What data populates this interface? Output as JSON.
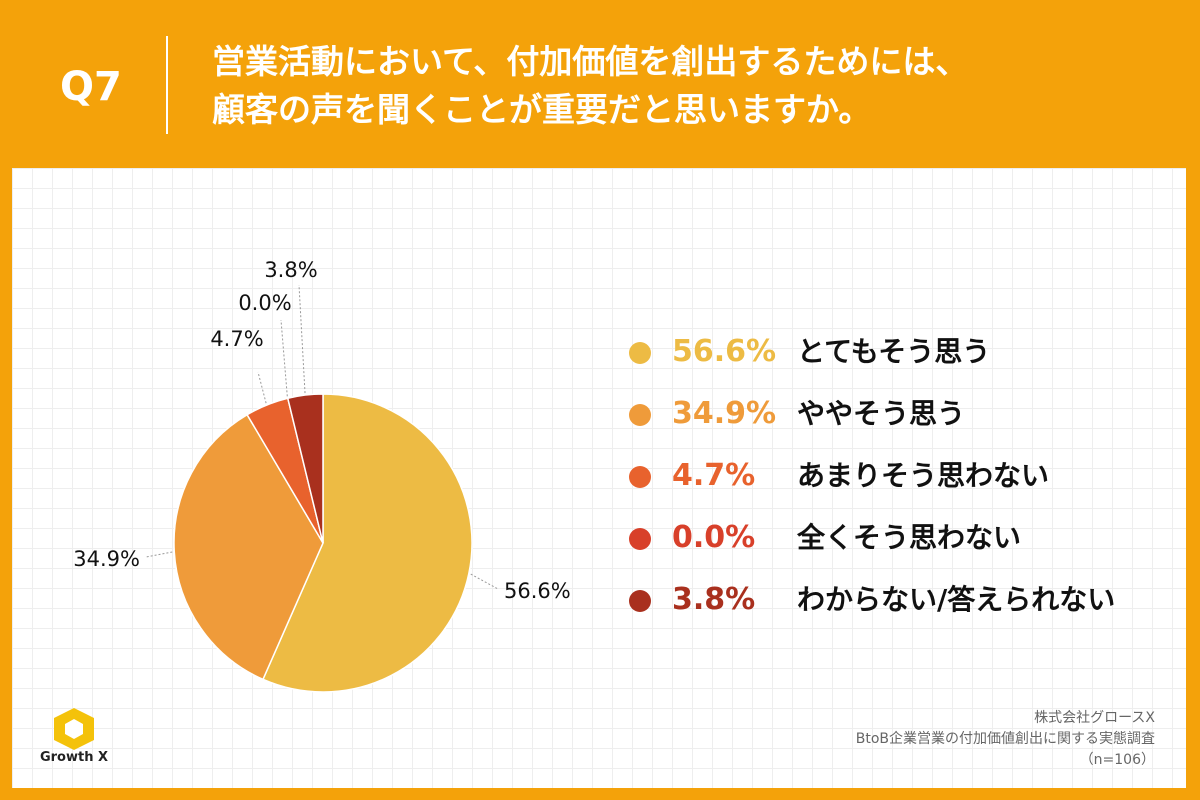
{
  "header": {
    "qnum": "Q7",
    "line1": "営業活動において、付加価値を創出するためには、",
    "line2": "顧客の声を聞くことが重要だと思いますか。"
  },
  "chart_data": {
    "type": "pie",
    "title": "営業活動において、付加価値を創出するためには、顧客の声を聞くことが重要だと思いますか。",
    "categories": [
      "とてもそう思う",
      "ややそう思う",
      "あまりそう思わない",
      "全くそう思わない",
      "わからない/答えられない"
    ],
    "values": [
      56.6,
      34.9,
      4.7,
      0.0,
      3.8
    ],
    "value_labels": [
      "56.6%",
      "34.9%",
      "4.7%",
      "0.0%",
      "3.8%"
    ],
    "colors": [
      "#EDBB44",
      "#EF9B3A",
      "#E8622D",
      "#D8402A",
      "#A9301E"
    ],
    "legend_position": "right",
    "start": "12 o'clock, clockwise"
  },
  "footer": {
    "company": "株式会社グロースX",
    "survey": "BtoB企業営業の付加価値創出に関する実態調査",
    "sample": "（n=106）"
  },
  "logo": {
    "text": "Growth X",
    "icon": "hexagon-logo-icon"
  }
}
